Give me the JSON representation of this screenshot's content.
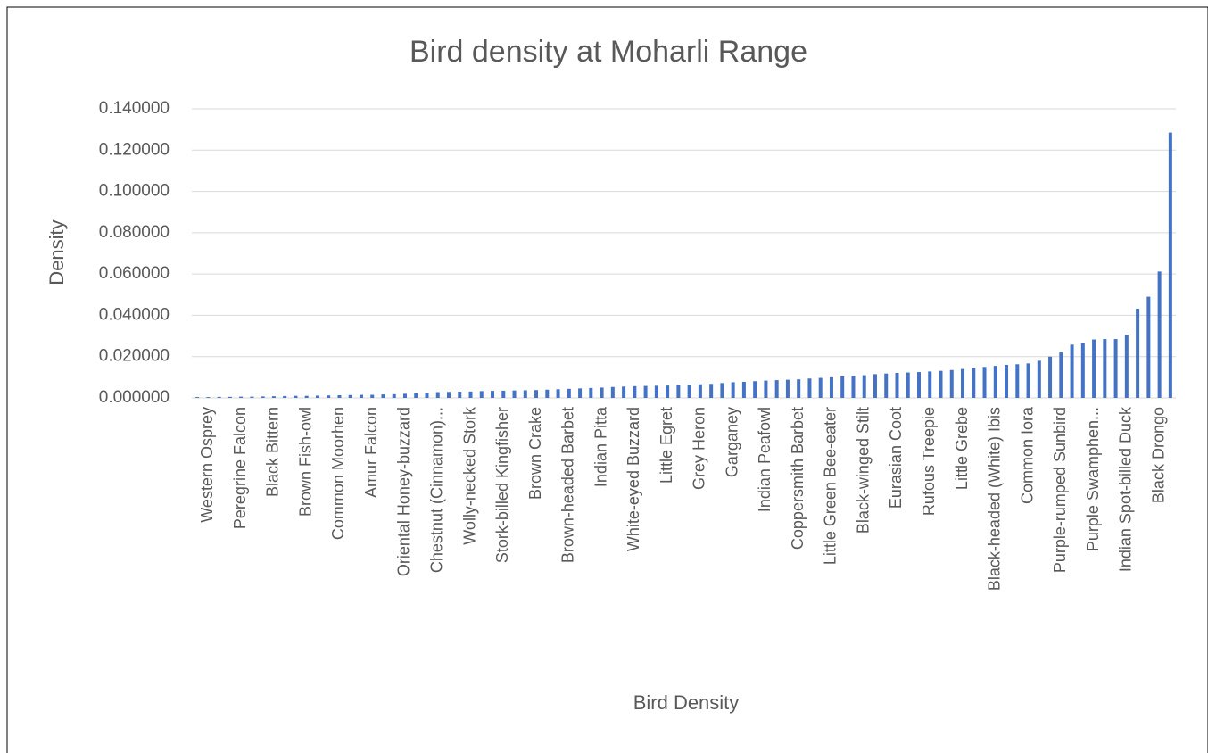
{
  "chart_data": {
    "type": "bar",
    "title": "Bird density at Moharli Range",
    "x_label": "Bird Density",
    "y_label": "Density",
    "categories": [
      null,
      "Western Osprey",
      null,
      null,
      "Peregrine Falcon",
      null,
      null,
      "Black Bittern",
      null,
      null,
      "Brown Fish-owl",
      null,
      null,
      "Common Moorhen",
      null,
      null,
      "Amur Falcon",
      null,
      null,
      "Oriental Honey-buzzard",
      null,
      null,
      "Chestnut (Cinnamon)...",
      null,
      null,
      "Wolly-necked Stork",
      null,
      null,
      "Stork-billed Kingfisher",
      null,
      null,
      "Brown Crake",
      null,
      null,
      "Brown-headed Barbet",
      null,
      null,
      "Indian Pitta",
      null,
      null,
      "White-eyed Buzzard",
      null,
      null,
      "Little Egret",
      null,
      null,
      "Grey Heron",
      null,
      null,
      "Garganey",
      null,
      null,
      "Indian Peafowl",
      null,
      null,
      "Coppersmith Barbet",
      null,
      null,
      "Little Green Bee-eater",
      null,
      null,
      "Black-winged Stilt",
      null,
      null,
      "Eurasian Coot",
      null,
      null,
      "Rufous Treepie",
      null,
      null,
      "Little Grebe",
      null,
      null,
      "Black-headed (White) Ibis",
      null,
      null,
      "Common Iora",
      null,
      null,
      "Purple-rumped Sunbird",
      null,
      null,
      "Purple Swamphen...",
      null,
      null,
      "Indian Spot-billed Duck",
      null,
      null,
      "Black Drongo",
      null
    ],
    "values": [
      0.0004,
      0.0004,
      0.0005,
      0.0005,
      0.0006,
      0.0006,
      0.0007,
      0.0008,
      0.0009,
      0.001,
      0.001,
      0.0011,
      0.0012,
      0.0013,
      0.0014,
      0.0015,
      0.0015,
      0.0017,
      0.0018,
      0.002,
      0.0022,
      0.0025,
      0.0028,
      0.0029,
      0.003,
      0.0031,
      0.0033,
      0.0034,
      0.0035,
      0.0036,
      0.0037,
      0.0038,
      0.004,
      0.0042,
      0.0044,
      0.0046,
      0.0048,
      0.005,
      0.0053,
      0.0055,
      0.0057,
      0.0058,
      0.0059,
      0.006,
      0.0062,
      0.0064,
      0.0066,
      0.0068,
      0.0072,
      0.0076,
      0.0078,
      0.0081,
      0.0084,
      0.0086,
      0.0088,
      0.009,
      0.0094,
      0.0097,
      0.01,
      0.0104,
      0.0107,
      0.011,
      0.0115,
      0.0118,
      0.0121,
      0.0123,
      0.0125,
      0.0128,
      0.0131,
      0.0135,
      0.014,
      0.0145,
      0.015,
      0.0155,
      0.016,
      0.0163,
      0.0167,
      0.018,
      0.02,
      0.022,
      0.0258,
      0.0265,
      0.0283,
      0.0285,
      0.0285,
      0.0305,
      0.0432,
      0.049,
      0.0612,
      0.1285
    ],
    "color": "#4472c4",
    "ylim": [
      0,
      0.14
    ],
    "yticks": [
      {
        "value": 0,
        "label": "0.000000"
      },
      {
        "value": 0.02,
        "label": "0.020000"
      },
      {
        "value": 0.04,
        "label": "0.040000"
      },
      {
        "value": 0.06,
        "label": "0.060000"
      },
      {
        "value": 0.08,
        "label": "0.080000"
      },
      {
        "value": 0.1,
        "label": "0.100000"
      },
      {
        "value": 0.12,
        "label": "0.120000"
      },
      {
        "value": 0.14,
        "label": "0.140000"
      }
    ],
    "grid": true
  }
}
